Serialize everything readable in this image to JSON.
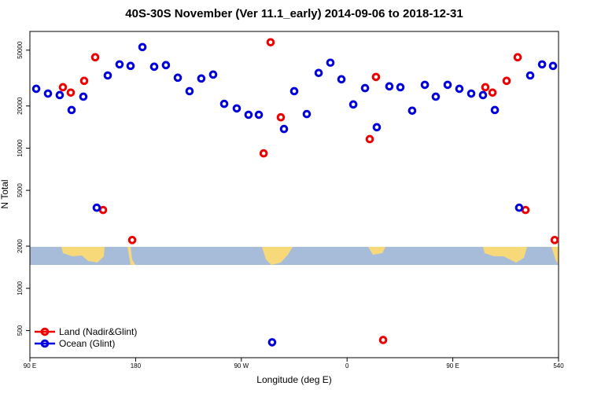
{
  "chart_data": {
    "type": "scatter",
    "title": "40S-30S November (Ver 11.1_early)   2014-09-06 to 2018-12-31",
    "x_label": "Longitude (deg E)",
    "y_label": "N Total",
    "log_y": true,
    "xlim": [
      90,
      540
    ],
    "ylim": [
      320,
      68000
    ],
    "xticks": [
      {
        "value": 90,
        "label": "90 E"
      },
      180,
      {
        "value": 270,
        "label": "90 W"
      },
      {
        "value": 360,
        "label": "0"
      },
      {
        "value": 450,
        "label": "90 E"
      },
      540
    ],
    "yticks": [
      500,
      1000,
      2000,
      5000,
      10000,
      20000,
      50000
    ],
    "legend": "bottom-left",
    "series": [
      {
        "name": "Land (Nadir&Glint)",
        "color": "#ee0000",
        "x": [
          118.1,
          124.8,
          136.2,
          145.6,
          152.3,
          177.1,
          289.0,
          294.9,
          303.6,
          379.3,
          384.6,
          390.7,
          477.7,
          483.8,
          495.8,
          505.2,
          511.9,
          536.7
        ],
        "values": [
          27200,
          24900,
          30200,
          44500,
          3620,
          2210,
          9180,
          56900,
          16600,
          11600,
          32200,
          428,
          27200,
          24900,
          30200,
          44500,
          3620,
          2210
        ]
      },
      {
        "name": "Ocean (Glint)",
        "color": "#0000dd",
        "x": [
          95.4,
          105.4,
          115.4,
          125.5,
          135.5,
          146.9,
          156.3,
          166.3,
          175.7,
          185.8,
          195.8,
          205.8,
          215.9,
          225.9,
          235.9,
          246.0,
          255.4,
          266.1,
          276.1,
          284.9,
          296.2,
          306.3,
          315.0,
          325.7,
          335.8,
          345.8,
          355.2,
          365.3,
          375.3,
          385.3,
          396.0,
          405.4,
          415.4,
          426.2,
          435.5,
          445.6,
          455.6,
          465.7,
          475.7,
          485.8,
          506.5,
          515.9,
          526.0,
          535.3
        ],
        "values": [
          26500,
          24500,
          23900,
          18700,
          23300,
          3760,
          33000,
          39600,
          38600,
          52600,
          38100,
          39100,
          31800,
          25500,
          31400,
          33500,
          20700,
          19200,
          17300,
          17300,
          412,
          13700,
          25500,
          17500,
          34400,
          40700,
          31000,
          20500,
          26800,
          14100,
          27600,
          27200,
          18500,
          28300,
          23300,
          28300,
          26500,
          24500,
          23900,
          18700,
          3760,
          33000,
          39600,
          38600
        ]
      }
    ]
  }
}
